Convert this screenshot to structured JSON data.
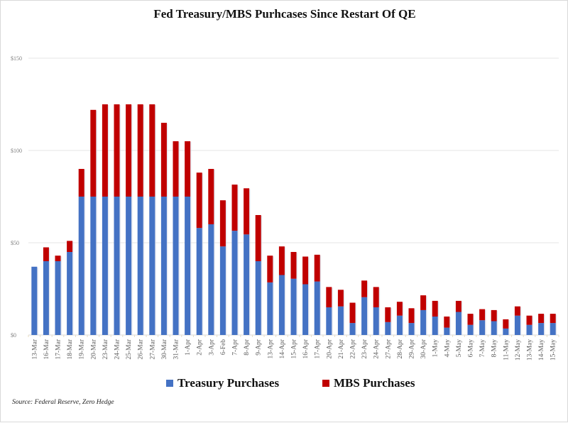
{
  "chart_data": {
    "type": "bar",
    "stacked": true,
    "title": "Fed Treasury/MBS Purhcases Since Restart Of QE",
    "xlabel": "",
    "ylabel": "",
    "ylim": [
      0,
      150
    ],
    "yticks": [
      0,
      50,
      100,
      150
    ],
    "ytick_labels": [
      "$0",
      "$50",
      "$100",
      "$150"
    ],
    "grid": true,
    "legend_position": "bottom",
    "categories": [
      "13-Mar",
      "16-Mar",
      "17-Mar",
      "18-Mar",
      "19-Mar",
      "20-Mar",
      "23-Mar",
      "24-Mar",
      "25-Mar",
      "26-Mar",
      "27-Mar",
      "30-Mar",
      "31-Mar",
      "1-Apr",
      "2-Apr",
      "3-Apr",
      "6-Feb",
      "7-Apr",
      "8-Apr",
      "9-Apr",
      "13-Apr",
      "14-Apr",
      "15-Apr",
      "16-Apr",
      "17-Apr",
      "20-Apr",
      "21-Apr",
      "22-Apr",
      "23-Apr",
      "24-Apr",
      "27-Apr",
      "28-Apr",
      "29-Apr",
      "30-Apr",
      "1-May",
      "4-May",
      "5-May",
      "6-May",
      "7-May",
      "8-May",
      "11-May",
      "12-May",
      "13-May",
      "14-May",
      "15-May"
    ],
    "series": [
      {
        "name": "Treasury Purchases",
        "color": "#4472c4",
        "values": [
          37,
          40,
          40,
          45,
          75,
          75,
          75,
          75,
          75,
          75,
          75,
          75,
          75,
          75,
          58,
          60,
          48,
          56.5,
          54.5,
          40,
          28.5,
          32.5,
          30.5,
          27.5,
          29,
          15,
          15.5,
          6.5,
          20.5,
          15,
          7,
          10.5,
          6.5,
          13.5,
          10,
          4,
          12.5,
          5.5,
          8,
          7.5,
          3.5,
          10.5,
          5.5,
          6.5,
          6.5
        ]
      },
      {
        "name": "MBS Purchases",
        "color": "#c00000",
        "values": [
          0,
          7.5,
          3,
          6,
          15,
          47,
          50,
          50,
          50,
          50,
          50,
          40,
          30,
          30,
          30,
          30,
          25,
          25,
          25,
          25,
          14.5,
          15.5,
          14.5,
          15,
          14.5,
          11,
          9,
          11,
          9,
          11,
          8,
          7.5,
          8,
          8,
          8.5,
          6,
          6,
          6,
          6,
          6,
          5,
          5,
          5,
          5,
          5
        ]
      }
    ],
    "source": "Source: Federal Reserve, Zero Hedge"
  }
}
